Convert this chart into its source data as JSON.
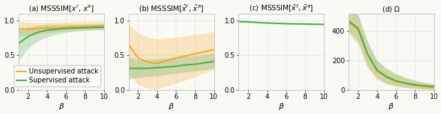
{
  "title_a": "(a) MSSSIM[$x^r$, $x^a$]",
  "title_b": "(b) MSSSIM[$\\tilde{x}^r$, $\\tilde{x}^a$]",
  "title_c": "(c) MSSSIM[$\\tilde{x}^t$, $\\tilde{x}^a$]",
  "title_d": "(d) $\\Omega$",
  "beta": [
    1,
    2,
    3,
    4,
    5,
    6,
    7,
    8,
    9,
    10
  ],
  "color_unsup": "#f5a623",
  "color_sup": "#4aaa50",
  "alpha_fill": 0.25,
  "legend_labels": [
    "Unsupervised attack",
    "Supervised attack"
  ],
  "panel_a": {
    "unsup_mean": [
      0.88,
      0.875,
      0.882,
      0.888,
      0.895,
      0.905,
      0.91,
      0.915,
      0.92,
      0.925
    ],
    "unsup_lo": [
      0.78,
      0.79,
      0.8,
      0.82,
      0.835,
      0.845,
      0.855,
      0.865,
      0.87,
      0.875
    ],
    "unsup_hi": [
      0.99,
      0.97,
      0.97,
      0.97,
      0.975,
      0.975,
      0.978,
      0.978,
      0.98,
      0.982
    ],
    "sup_mean": [
      0.67,
      0.77,
      0.83,
      0.86,
      0.875,
      0.885,
      0.89,
      0.895,
      0.9,
      0.905
    ],
    "sup_lo": [
      0.42,
      0.6,
      0.7,
      0.76,
      0.8,
      0.83,
      0.845,
      0.855,
      0.86,
      0.865
    ],
    "sup_hi": [
      0.86,
      0.9,
      0.93,
      0.94,
      0.945,
      0.945,
      0.948,
      0.948,
      0.95,
      0.952
    ],
    "ylim": [
      0.0,
      1.1
    ],
    "yticks": [
      0.0,
      0.5,
      1.0
    ]
  },
  "panel_b": {
    "unsup_mean": [
      0.65,
      0.46,
      0.4,
      0.38,
      0.42,
      0.46,
      0.49,
      0.52,
      0.55,
      0.58
    ],
    "unsup_lo": [
      0.22,
      0.08,
      0.02,
      0.01,
      0.05,
      0.1,
      0.14,
      0.19,
      0.24,
      0.3
    ],
    "unsup_hi": [
      0.95,
      0.82,
      0.76,
      0.73,
      0.75,
      0.76,
      0.78,
      0.8,
      0.82,
      0.84
    ],
    "sup_mean": [
      0.31,
      0.31,
      0.31,
      0.32,
      0.33,
      0.34,
      0.36,
      0.37,
      0.39,
      0.41
    ],
    "sup_lo": [
      0.15,
      0.18,
      0.19,
      0.2,
      0.22,
      0.24,
      0.26,
      0.27,
      0.29,
      0.31
    ],
    "sup_hi": [
      0.47,
      0.44,
      0.44,
      0.45,
      0.46,
      0.47,
      0.48,
      0.49,
      0.51,
      0.53
    ],
    "ylim": [
      0.0,
      1.1
    ],
    "yticks": [
      0.0,
      0.5,
      1.0
    ]
  },
  "panel_c": {
    "has_unsup": false,
    "sup_mean": [
      0.985,
      0.98,
      0.972,
      0.965,
      0.96,
      0.955,
      0.952,
      0.95,
      0.947,
      0.944
    ],
    "sup_lo": [
      0.975,
      0.97,
      0.962,
      0.955,
      0.95,
      0.945,
      0.942,
      0.94,
      0.937,
      0.934
    ],
    "sup_hi": [
      0.995,
      0.99,
      0.982,
      0.975,
      0.97,
      0.966,
      0.962,
      0.96,
      0.957,
      0.954
    ],
    "ylim": [
      0.0,
      1.1
    ],
    "yticks": [
      0.0,
      0.5,
      1.0
    ]
  },
  "panel_d": {
    "unsup_mean": [
      460,
      410,
      240,
      130,
      85,
      58,
      42,
      30,
      22,
      16
    ],
    "unsup_lo": [
      380,
      310,
      150,
      70,
      38,
      22,
      14,
      8,
      4,
      2
    ],
    "unsup_hi": [
      540,
      510,
      330,
      200,
      145,
      108,
      82,
      62,
      48,
      38
    ],
    "sup_mean": [
      470,
      420,
      245,
      135,
      90,
      62,
      46,
      35,
      28,
      22
    ],
    "sup_lo": [
      400,
      330,
      160,
      80,
      45,
      28,
      18,
      12,
      6,
      3
    ],
    "sup_hi": [
      540,
      510,
      330,
      200,
      148,
      110,
      85,
      65,
      52,
      42
    ],
    "ylim": [
      0,
      520
    ],
    "yticks": [
      0,
      200,
      400
    ]
  },
  "bg_color": "#fafaf5",
  "grid_color": "#e8e8e8",
  "fontsize_title": 7.5,
  "fontsize_tick": 7,
  "fontsize_legend": 7
}
